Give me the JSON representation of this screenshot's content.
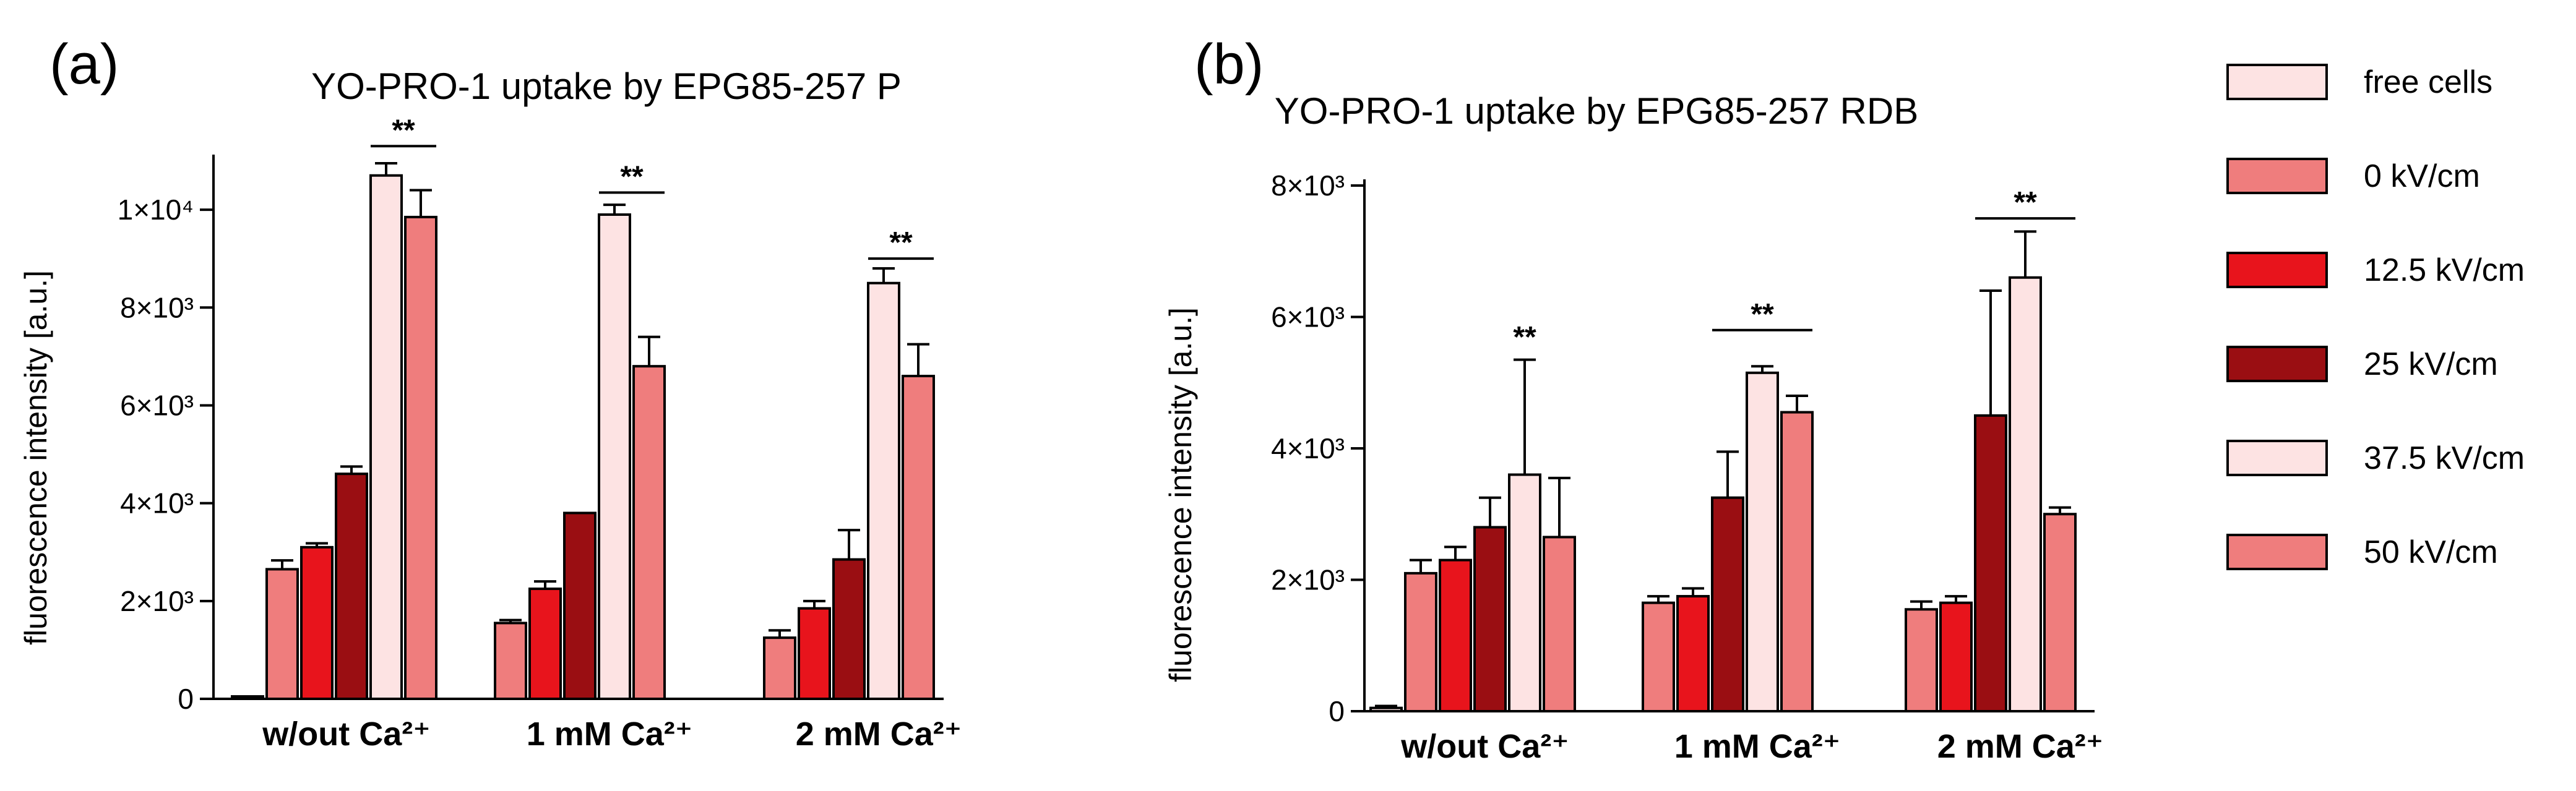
{
  "colors": {
    "free cells": "#fde3e3",
    "0 kV/cm": "#ef7d7d",
    "12.5  kV/cm": "#e8141c",
    "25 kV/cm": "#9a0e12",
    "37.5  kV/cm": "#fde3e3",
    "50 kV/cm": "#ef7d7d"
  },
  "legend": {
    "items": [
      "free cells",
      "0 kV/cm",
      "12.5  kV/cm",
      "25 kV/cm",
      "37.5  kV/cm",
      "50 kV/cm"
    ]
  },
  "chart_data": [
    {
      "panel": "(a)",
      "type": "bar",
      "title": "YO-PRO-1 uptake by EPG85-257 P",
      "ylabel": "fluorescence intensity [a.u.]",
      "ylim": [
        0,
        11000
      ],
      "yticks": [
        {
          "value": 0,
          "label": "0"
        },
        {
          "value": 2000,
          "label": "2×10³"
        },
        {
          "value": 4000,
          "label": "4×10³"
        },
        {
          "value": 6000,
          "label": "6×10³"
        },
        {
          "value": 8000,
          "label": "8×10³"
        },
        {
          "value": 10000,
          "label": "1×10⁴"
        }
      ],
      "categories": [
        "w/out Ca²⁺",
        "1 mM Ca²⁺",
        "2 mM Ca²⁺"
      ],
      "series": [
        {
          "name": "free cells",
          "values": [
            50,
            null,
            null
          ],
          "errors": [
            0,
            null,
            null
          ]
        },
        {
          "name": "0 kV/cm",
          "values": [
            2650,
            1550,
            1250
          ],
          "errors": [
            180,
            60,
            150
          ]
        },
        {
          "name": "12.5  kV/cm",
          "values": [
            3100,
            2250,
            1850
          ],
          "errors": [
            80,
            150,
            150
          ]
        },
        {
          "name": "25 kV/cm",
          "values": [
            4600,
            3800,
            2850
          ],
          "errors": [
            150,
            0,
            600
          ]
        },
        {
          "name": "37.5  kV/cm",
          "values": [
            10700,
            9900,
            8500
          ],
          "errors": [
            250,
            200,
            300
          ]
        },
        {
          "name": "50 kV/cm",
          "values": [
            9850,
            6800,
            6600
          ],
          "errors": [
            550,
            600,
            650
          ]
        }
      ],
      "significance": [
        {
          "category": 0,
          "from_series": 4,
          "to_series": 5,
          "label": "**",
          "y": 11300
        },
        {
          "category": 1,
          "from_series": 4,
          "to_series": 5,
          "label": "**",
          "y": 10350
        },
        {
          "category": 2,
          "from_series": 4,
          "to_series": 5,
          "label": "**",
          "y": 9000
        }
      ]
    },
    {
      "panel": "(b)",
      "type": "bar",
      "title": "YO-PRO-1 uptake by EPG85-257 RDB",
      "ylabel": "fluorescence intensity [a.u.]",
      "ylim": [
        0,
        8000
      ],
      "yticks": [
        {
          "value": 0,
          "label": "0"
        },
        {
          "value": 2000,
          "label": "2×10³"
        },
        {
          "value": 4000,
          "label": "4×10³"
        },
        {
          "value": 6000,
          "label": "6×10³"
        },
        {
          "value": 8000,
          "label": "8×10³"
        }
      ],
      "categories": [
        "w/out Ca²⁺",
        "1 mM Ca²⁺",
        "2 mM Ca²⁺"
      ],
      "series": [
        {
          "name": "free cells",
          "values": [
            50,
            null,
            null
          ],
          "errors": [
            30,
            null,
            null
          ]
        },
        {
          "name": "0 kV/cm",
          "values": [
            2100,
            1650,
            1550
          ],
          "errors": [
            200,
            100,
            120
          ]
        },
        {
          "name": "12.5  kV/cm",
          "values": [
            2300,
            1750,
            1650
          ],
          "errors": [
            200,
            120,
            100
          ]
        },
        {
          "name": "25 kV/cm",
          "values": [
            2800,
            3250,
            4500
          ],
          "errors": [
            450,
            700,
            1900
          ]
        },
        {
          "name": "37.5  kV/cm",
          "values": [
            3600,
            5150,
            6600
          ],
          "errors": [
            1750,
            100,
            700
          ]
        },
        {
          "name": "50 kV/cm",
          "values": [
            2650,
            4550,
            3000
          ],
          "errors": [
            900,
            250,
            100
          ]
        }
      ],
      "significance": [
        {
          "category": 0,
          "from_series": 4,
          "to_series": 4,
          "label": "**",
          "y": 5450
        },
        {
          "category": 1,
          "from_series": 3,
          "to_series": 5,
          "label": "**",
          "y": 5800
        },
        {
          "category": 2,
          "from_series": 3,
          "to_series": 5,
          "label": "**",
          "y": 7500
        }
      ]
    }
  ]
}
